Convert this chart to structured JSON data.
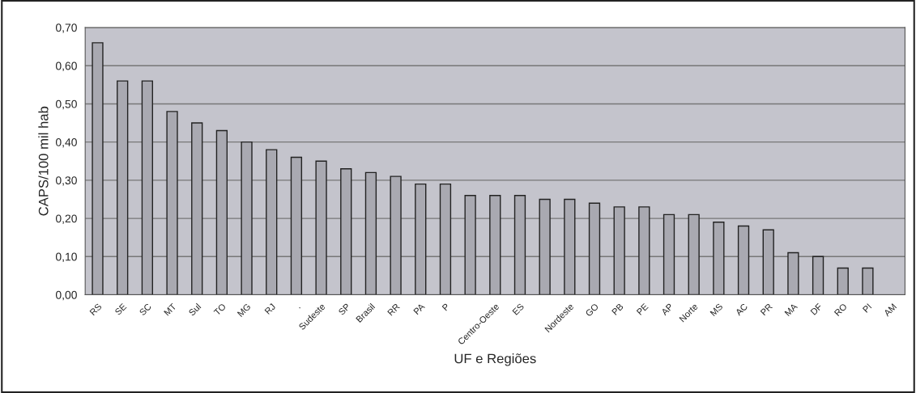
{
  "chart_data": {
    "type": "bar",
    "xlabel": "UF e Regiões",
    "ylabel": "CAPS/100 mil hab",
    "categories": [
      "RS",
      "SE",
      "SC",
      "MT",
      "Sul",
      "TO",
      "MG",
      "RJ",
      ".",
      "Sudeste",
      "SP",
      "Brasil",
      "RR",
      "PA",
      "P",
      null,
      "Centro-Oeste",
      "ES",
      null,
      "Nordeste",
      "GO",
      "PB",
      "PE",
      "AP",
      "Norte",
      "MS",
      "AC",
      "PR",
      "MA",
      "DF",
      "RO",
      "PI",
      "AM"
    ],
    "values": [
      0.66,
      0.56,
      0.56,
      0.48,
      0.45,
      0.43,
      0.4,
      0.38,
      0.36,
      0.35,
      0.33,
      0.32,
      0.31,
      0.29,
      0.29,
      0.26,
      0.26,
      0.26,
      0.25,
      0.25,
      0.24,
      0.23,
      0.23,
      0.21,
      0.21,
      0.19,
      0.18,
      0.17,
      0.11,
      0.1,
      0.07,
      0.07,
      null
    ],
    "color": "#a9a9b1",
    "ylim": [
      0,
      0.7
    ],
    "yticks": [
      {
        "value": 0,
        "label": "0,00"
      },
      {
        "value": 0.1,
        "label": "0,10"
      },
      {
        "value": 0.2,
        "label": "0,20"
      },
      {
        "value": 0.3,
        "label": "0,30"
      },
      {
        "value": 0.4,
        "label": "0,40"
      },
      {
        "value": 0.5,
        "label": "0,50"
      },
      {
        "value": 0.6,
        "label": "0,60"
      },
      {
        "value": 0.7,
        "label": "0,70"
      }
    ],
    "grid": "y",
    "legend": false
  }
}
